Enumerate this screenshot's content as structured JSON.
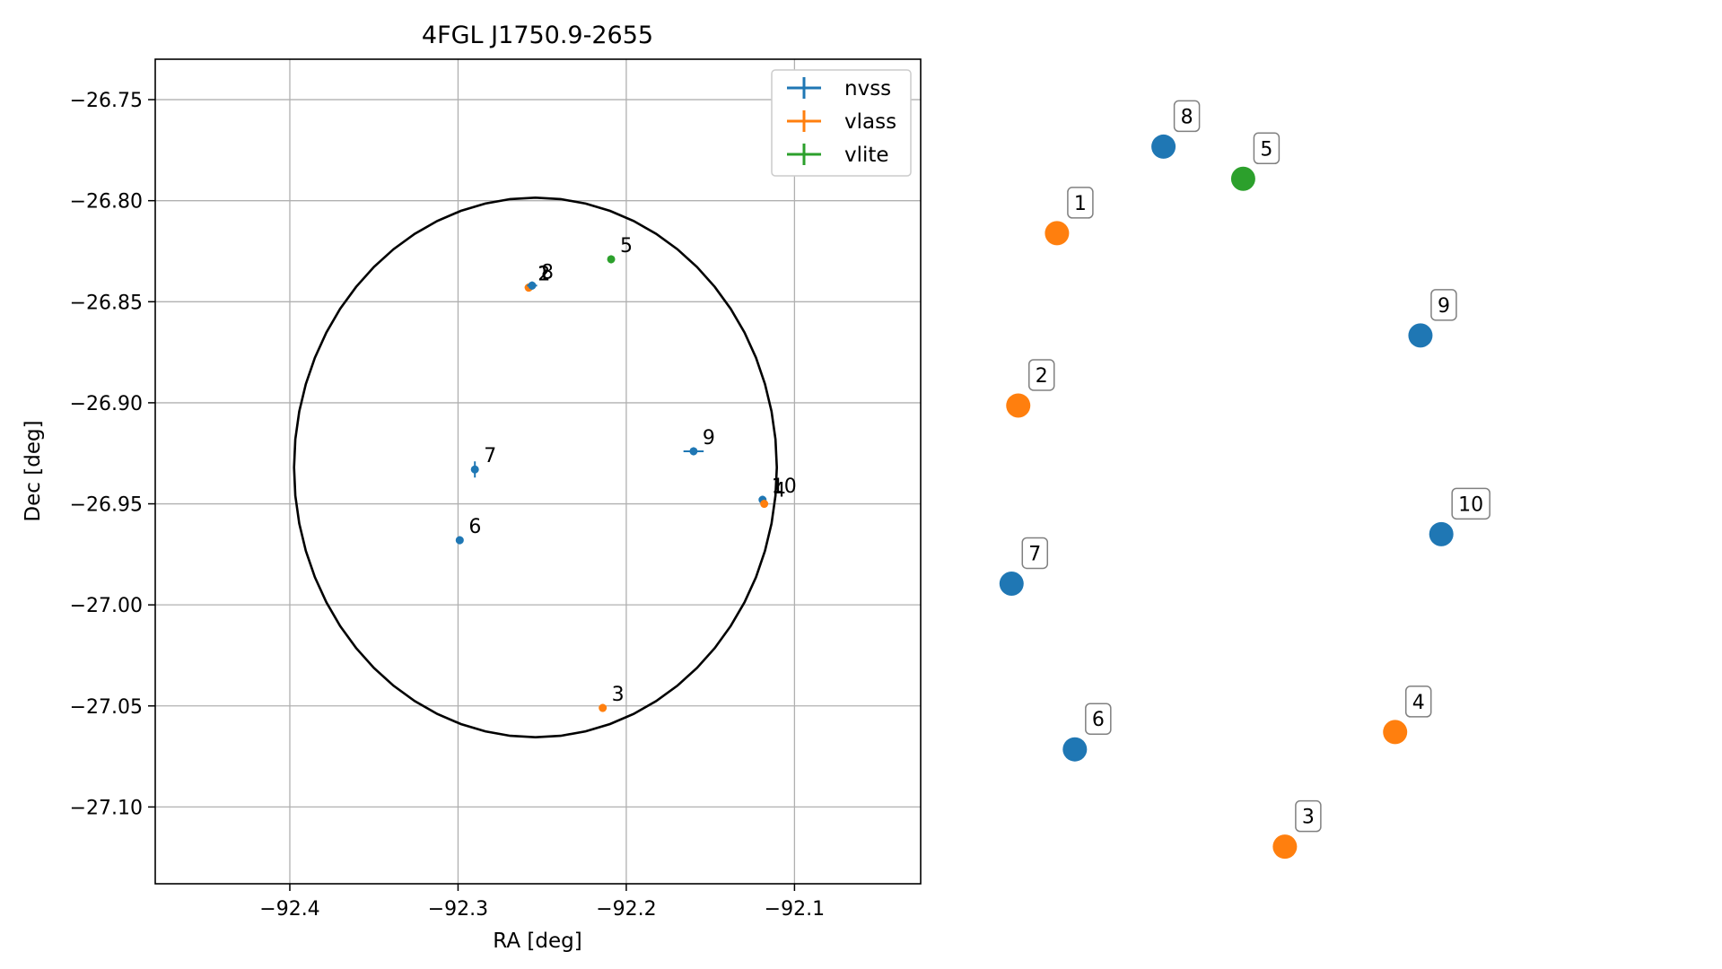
{
  "chart_data": [
    {
      "type": "scatter",
      "title": "4FGL J1750.9-2655",
      "xlabel": "RA [deg]",
      "ylabel": "Dec [deg]",
      "xlim": [
        -92.48,
        -92.025
      ],
      "ylim": [
        -27.138,
        -26.73
      ],
      "x_ticks": [
        -92.4,
        -92.3,
        -92.2,
        -92.1
      ],
      "x_tick_labels": [
        "−92.4",
        "−92.3",
        "−92.2",
        "−92.1"
      ],
      "y_ticks": [
        -26.75,
        -26.8,
        -26.85,
        -26.9,
        -26.95,
        -27.0,
        -27.05,
        -27.1
      ],
      "y_tick_labels": [
        "−26.75",
        "−26.80",
        "−26.85",
        "−26.90",
        "−26.95",
        "−27.00",
        "−27.05",
        "−27.10"
      ],
      "grid": true,
      "legend_position": "top-right",
      "legend": [
        {
          "name": "nvss",
          "color": "#1f77b4"
        },
        {
          "name": "vlass",
          "color": "#ff7f0e"
        },
        {
          "name": "vlite",
          "color": "#2ca02c"
        }
      ],
      "ellipse": {
        "ra": -92.254,
        "dec": -26.932,
        "semi_ra": 0.1435,
        "semi_dec": 0.1335,
        "color": "#000000"
      },
      "points": [
        {
          "label": "1",
          "series": "vlass",
          "ra": -92.258,
          "dec": -26.843,
          "xerr": 0.002,
          "yerr": 0.002
        },
        {
          "label": "2",
          "series": "vlass",
          "ra": -92.258,
          "dec": -26.843,
          "xerr": 0.002,
          "yerr": 0.002
        },
        {
          "label": "8",
          "series": "nvss",
          "ra": -92.256,
          "dec": -26.842,
          "xerr": 0.003,
          "yerr": 0.002
        },
        {
          "label": "5",
          "series": "vlite",
          "ra": -92.209,
          "dec": -26.829,
          "xerr": 0.002,
          "yerr": 0.002
        },
        {
          "label": "9",
          "series": "nvss",
          "ra": -92.16,
          "dec": -26.924,
          "xerr": 0.006,
          "yerr": 0.002
        },
        {
          "label": "7",
          "series": "nvss",
          "ra": -92.29,
          "dec": -26.933,
          "xerr": 0.002,
          "yerr": 0.004
        },
        {
          "label": "10",
          "series": "nvss",
          "ra": -92.119,
          "dec": -26.948,
          "xerr": 0.002,
          "yerr": 0.002
        },
        {
          "label": "4",
          "series": "vlass",
          "ra": -92.118,
          "dec": -26.95,
          "xerr": 0.002,
          "yerr": 0.002
        },
        {
          "label": "6",
          "series": "nvss",
          "ra": -92.299,
          "dec": -26.968,
          "xerr": 0.002,
          "yerr": 0.002
        },
        {
          "label": "3",
          "series": "vlass",
          "ra": -92.214,
          "dec": -27.051,
          "xerr": 0.002,
          "yerr": 0.002
        }
      ]
    },
    {
      "type": "scatter",
      "title": "",
      "axes_visible": false,
      "grid": false,
      "points": [
        {
          "label": "1",
          "series": "vlass",
          "x": 0.13,
          "y": 0.789
        },
        {
          "label": "2",
          "series": "vlass",
          "x": 0.078,
          "y": 0.58
        },
        {
          "label": "3",
          "series": "vlass",
          "x": 0.436,
          "y": 0.045
        },
        {
          "label": "4",
          "series": "vlass",
          "x": 0.584,
          "y": 0.184
        },
        {
          "label": "5",
          "series": "vlite",
          "x": 0.38,
          "y": 0.855
        },
        {
          "label": "6",
          "series": "nvss",
          "x": 0.154,
          "y": 0.163
        },
        {
          "label": "7",
          "series": "nvss",
          "x": 0.069,
          "y": 0.364
        },
        {
          "label": "8",
          "series": "nvss",
          "x": 0.273,
          "y": 0.894
        },
        {
          "label": "9",
          "series": "nvss",
          "x": 0.618,
          "y": 0.665
        },
        {
          "label": "10",
          "series": "nvss",
          "x": 0.646,
          "y": 0.424
        }
      ]
    }
  ],
  "colors": {
    "nvss": "#1f77b4",
    "vlass": "#ff7f0e",
    "vlite": "#2ca02c",
    "grid": "#b0b0b0",
    "ellipse": "#000000"
  }
}
